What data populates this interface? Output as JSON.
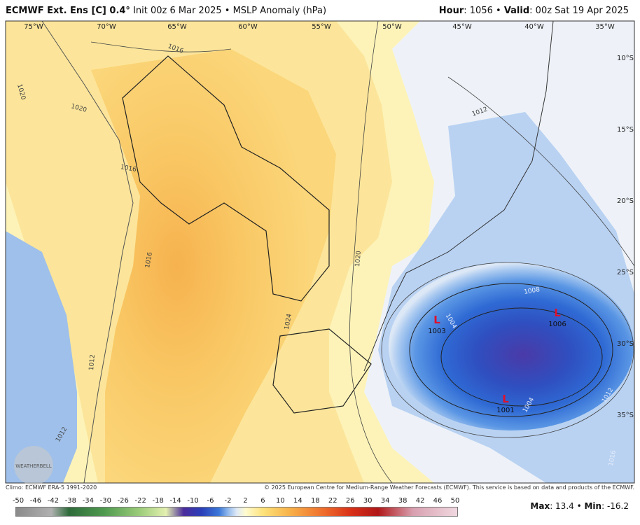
{
  "header": {
    "title": "ECMWF Ext. Ens [C] 0.4°",
    "subtitle": "Init 00z 6 Mar 2025 • MSLP Anomaly (hPa)",
    "hour_label": "Hour",
    "hour_value": ": 1056 •",
    "valid_label": "Valid",
    "valid_value": ": 00z Sat 19 Apr 2025"
  },
  "map": {
    "longitudes": [
      "75°W",
      "70°W",
      "65°W",
      "60°W",
      "55°W",
      "50°W",
      "45°W",
      "40°W",
      "35°W"
    ],
    "latitudes": [
      "10°S",
      "15°S",
      "20°S",
      "25°S",
      "30°S",
      "35°S"
    ],
    "contour_labels": [
      "1016",
      "1020",
      "1020",
      "1016",
      "1016",
      "1012",
      "1020",
      "1024",
      "1008",
      "1004",
      "1004",
      "1012",
      "1016",
      "1012",
      "1012"
    ],
    "lows": [
      {
        "symbol": "L",
        "pressure": "1003"
      },
      {
        "symbol": "L",
        "pressure": "1006"
      },
      {
        "symbol": "L",
        "pressure": "1001"
      }
    ],
    "logo": "WEATHERBELL"
  },
  "footer": {
    "climo": "Climo: ECMWF ERA-5 1991-2020",
    "copyright": "© 2025 European Centre for Medium-Range Weather Forecasts (ECMWF). This service is based on data and products of the ECMWF.",
    "colorbar_labels": [
      "-50",
      "-46",
      "-42",
      "-38",
      "-34",
      "-30",
      "-26",
      "-22",
      "-18",
      "-14",
      "-10",
      "-6",
      "-2",
      "2",
      "6",
      "10",
      "14",
      "18",
      "22",
      "26",
      "30",
      "34",
      "38",
      "42",
      "46",
      "50"
    ],
    "max_label": "Max",
    "max_value": ": 13.4 •",
    "min_label": "Min",
    "min_value": ": -16.2"
  }
}
